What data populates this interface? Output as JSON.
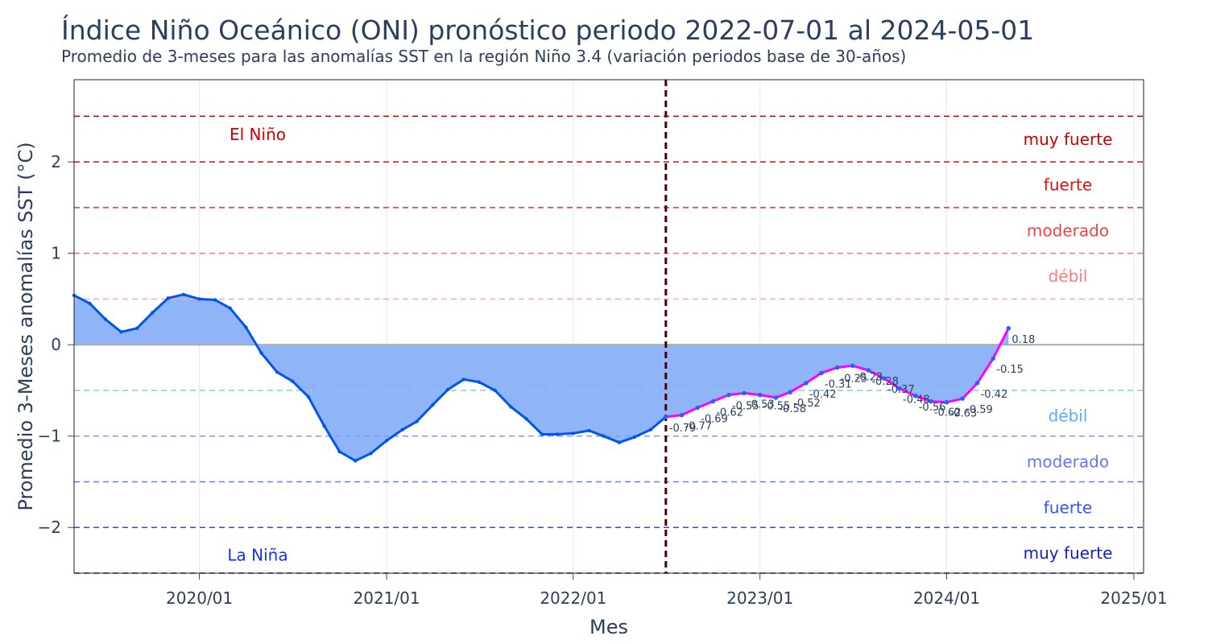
{
  "chart_data": {
    "type": "area",
    "title": "Índice Niño Oceánico (ONI) pronóstico periodo 2022-07-01 al 2024-05-01",
    "subtitle": "Promedio de 3-meses para las anomalías SST en la región Niño 3.4 (variación periodos base de 30-años)",
    "xlabel": "Mes",
    "ylabel": "Promedio 3-Meses anomalías SST (°C)",
    "xlim": [
      "2019-05-01",
      "2025-01-20"
    ],
    "ylim": [
      -2.5,
      2.9
    ],
    "x_ticks": [
      "2020/01",
      "2021/01",
      "2022/01",
      "2023/01",
      "2024/01",
      "2025/01"
    ],
    "y_ticks": [
      -2,
      -1,
      0,
      1,
      2
    ],
    "forecast_start": "2022-07-01",
    "colors": {
      "observed_line": "#0055ee",
      "fill": "#8fb4f8",
      "forecast_line": "#ff00ff",
      "forecast_marker": "#2266ff",
      "forecast_start_line": "#4a0000",
      "zero_line": "#aaaaaa",
      "text": "#2a3f5f"
    },
    "thresholds": [
      {
        "y": 2.5,
        "color": "#bb0000"
      },
      {
        "y": 2.0,
        "color": "#cc1111"
      },
      {
        "y": 1.5,
        "color": "#e03333"
      },
      {
        "y": 1.0,
        "color": "#ee7777"
      },
      {
        "y": 0.5,
        "color": "#f4aaaa"
      },
      {
        "y": -0.5,
        "color": "#88c8e8"
      },
      {
        "y": -1.0,
        "color": "#7f9bf5"
      },
      {
        "y": -1.5,
        "color": "#5f7ff5"
      },
      {
        "y": -2.0,
        "color": "#2a4cf0"
      },
      {
        "y": -2.5,
        "color": "#000088"
      }
    ],
    "region_labels": {
      "el_nino": {
        "text": "El Niño",
        "color": "#cc0000"
      },
      "la_nina": {
        "text": "La Niña",
        "color": "#1133ee"
      }
    },
    "intensity_labels": [
      {
        "text": "muy fuerte",
        "y": 2.25,
        "color": "#cc0000"
      },
      {
        "text": "fuerte",
        "y": 1.75,
        "color": "#dd1111"
      },
      {
        "text": "moderado",
        "y": 1.25,
        "color": "#ee4444"
      },
      {
        "text": "débil",
        "y": 0.75,
        "color": "#f08080"
      },
      {
        "text": "débil",
        "y": -0.78,
        "color": "#66aaee"
      },
      {
        "text": "moderado",
        "y": -1.28,
        "color": "#6677ee"
      },
      {
        "text": "fuerte",
        "y": -1.78,
        "color": "#3355ee"
      },
      {
        "text": "muy fuerte",
        "y": -2.28,
        "color": "#1122cc"
      }
    ],
    "series": [
      {
        "x": [
          "2019-05",
          "2019-06",
          "2019-07",
          "2019-08",
          "2019-09",
          "2019-10",
          "2019-11",
          "2019-12",
          "2020-01",
          "2020-02",
          "2020-03",
          "2020-04",
          "2020-05",
          "2020-06",
          "2020-07",
          "2020-08",
          "2020-09",
          "2020-10",
          "2020-11",
          "2020-12",
          "2021-01",
          "2021-02",
          "2021-03",
          "2021-04",
          "2021-05",
          "2021-06",
          "2021-07",
          "2021-08",
          "2021-09",
          "2021-10",
          "2021-11",
          "2021-12",
          "2022-01",
          "2022-02",
          "2022-03",
          "2022-04",
          "2022-05",
          "2022-06",
          "2022-07"
        ],
        "values": [
          0.54,
          0.45,
          0.28,
          0.14,
          0.18,
          0.35,
          0.51,
          0.55,
          0.5,
          0.49,
          0.4,
          0.19,
          -0.09,
          -0.3,
          -0.4,
          -0.57,
          -0.89,
          -1.17,
          -1.27,
          -1.19,
          -1.05,
          -0.93,
          -0.84,
          -0.66,
          -0.49,
          -0.38,
          -0.41,
          -0.5,
          -0.68,
          -0.81,
          -0.98,
          -0.98,
          -0.97,
          -0.94,
          -1.0,
          -1.07,
          -1.01,
          -0.93,
          -0.79
        ]
      },
      {
        "x": [
          "2022-07",
          "2022-08",
          "2022-09",
          "2022-10",
          "2022-11",
          "2022-12",
          "2023-01",
          "2023-02",
          "2023-03",
          "2023-04",
          "2023-05",
          "2023-06",
          "2023-07",
          "2023-08",
          "2023-09",
          "2023-10",
          "2023-11",
          "2023-12",
          "2024-01",
          "2024-02",
          "2024-03",
          "2024-04",
          "2024-05"
        ],
        "values": [
          -0.79,
          -0.77,
          -0.69,
          -0.62,
          -0.55,
          -0.53,
          -0.55,
          -0.58,
          -0.52,
          -0.42,
          -0.31,
          -0.25,
          -0.23,
          -0.28,
          -0.37,
          -0.48,
          -0.56,
          -0.62,
          -0.63,
          -0.59,
          -0.42,
          -0.15,
          0.18
        ],
        "labels": [
          "-0.79",
          "-0.77",
          "-0.69",
          "-0.62",
          "-0.55",
          "-0.53",
          "-0.55",
          "-0.58",
          "-0.52",
          "-0.42",
          "-0.31",
          "-0.25",
          "-0.23",
          "-0.28",
          "-0.37",
          "-0.48",
          "-0.56",
          "-0.62",
          "-0.63",
          "-0.59",
          "-0.42",
          "-0.15",
          "0.18"
        ]
      }
    ]
  }
}
